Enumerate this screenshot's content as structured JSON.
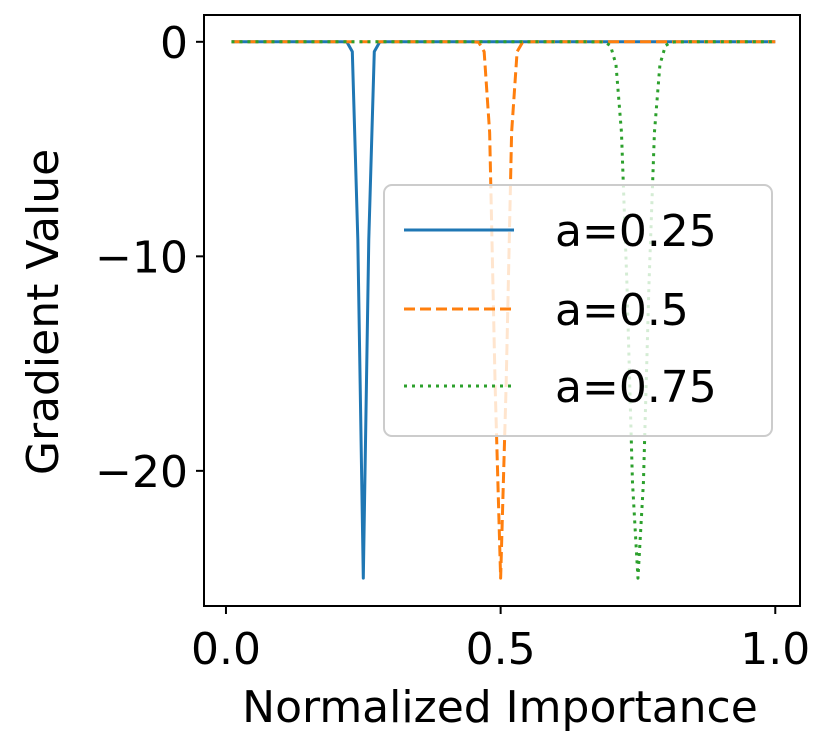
{
  "chart_data": {
    "type": "line",
    "title": "",
    "xlabel": "Normalized Importance",
    "ylabel": "Gradient Value",
    "xlim": [
      -0.04,
      1.045
    ],
    "ylim": [
      -26.3,
      1.25
    ],
    "grid": false,
    "x_ticks": [
      0.0,
      0.5,
      1.0
    ],
    "x_tick_labels": [
      "0.0",
      "0.5",
      "1.0"
    ],
    "y_ticks": [
      0,
      -10,
      -20
    ],
    "y_tick_labels": [
      "0",
      "−10",
      "−20"
    ],
    "legend_position": "center-right",
    "x_range": [
      0.01,
      1.0
    ],
    "series": [
      {
        "name": "a=0.25",
        "label": "a=0.25",
        "center": 0.25,
        "min_value": -25.0,
        "color": "#1f77b4",
        "style": "solid"
      },
      {
        "name": "a=0.5",
        "label": "a=0.5",
        "center": 0.5,
        "min_value": -25.0,
        "color": "#ff7f0e",
        "style": "dashed"
      },
      {
        "name": "a=0.75",
        "label": "a=0.75",
        "center": 0.75,
        "min_value": -25.0,
        "color": "#2ca02c",
        "style": "dotted"
      }
    ]
  }
}
